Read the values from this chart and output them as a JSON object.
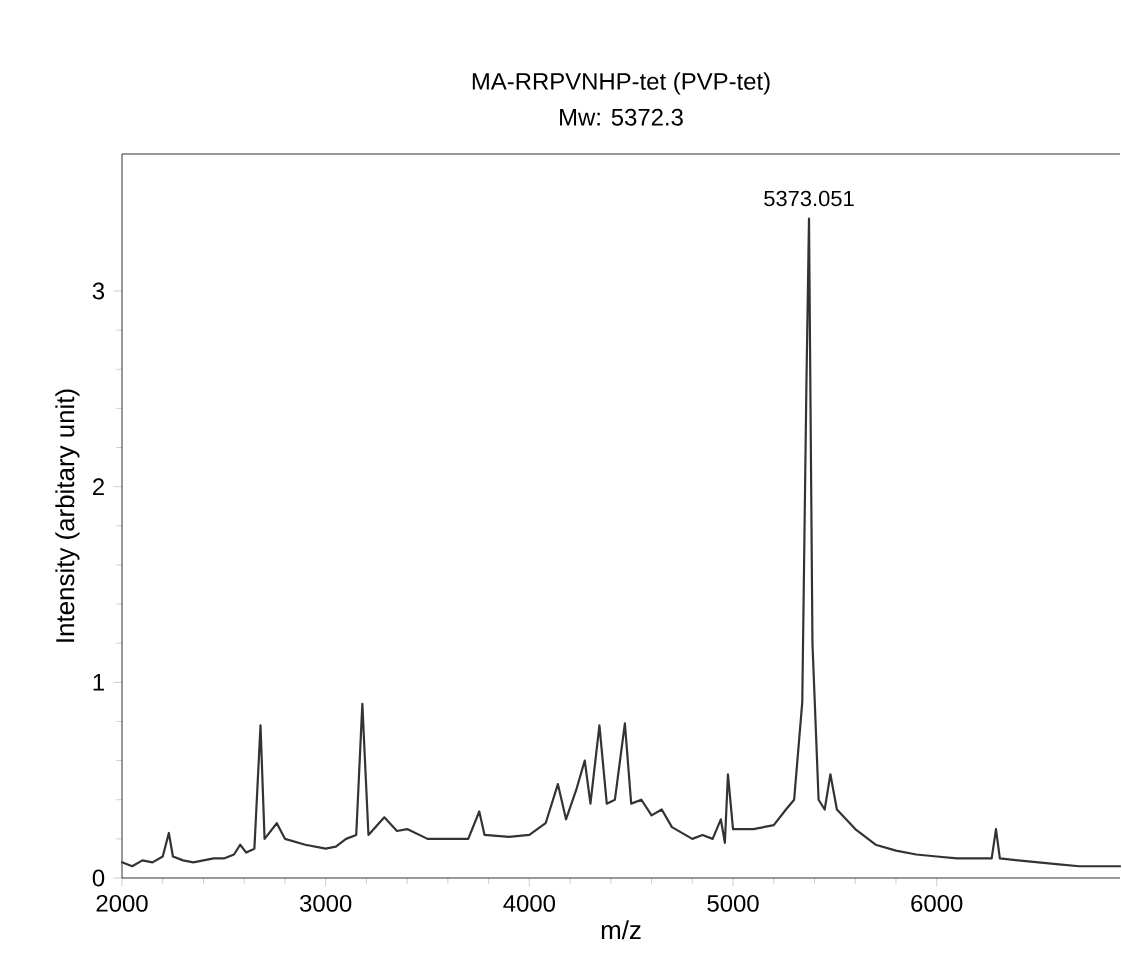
{
  "chart_data": {
    "type": "line",
    "title": "MA-RRPVNHP-tet (PVP-tet)",
    "subtitle": "Mw: 5372.3",
    "xlabel": "m/z",
    "ylabel": "Intensity (arbitary unit)",
    "xlim": [
      2000,
      6900
    ],
    "ylim": [
      0,
      3.7
    ],
    "xticks": [
      2000,
      3000,
      4000,
      5000,
      6000
    ],
    "yticks": [
      0,
      1,
      2,
      3
    ],
    "grid": false,
    "marker": "none",
    "line_style": "solid",
    "annotations": [
      {
        "text": "5373.051",
        "x": 5373,
        "y": 3.37
      }
    ],
    "series": [
      {
        "color": "#333333",
        "x": [
          2000,
          2050,
          2100,
          2150,
          2200,
          2230,
          2250,
          2300,
          2350,
          2400,
          2450,
          2500,
          2550,
          2580,
          2610,
          2650,
          2680,
          2700,
          2760,
          2800,
          2900,
          3000,
          3050,
          3100,
          3150,
          3180,
          3210,
          3288,
          3350,
          3400,
          3500,
          3600,
          3700,
          3754,
          3780,
          3900,
          4000,
          4080,
          4140,
          4180,
          4230,
          4272,
          4300,
          4344,
          4380,
          4420,
          4469,
          4500,
          4550,
          4600,
          4650,
          4700,
          4800,
          4850,
          4900,
          4940,
          4960,
          4975,
          5000,
          5100,
          5200,
          5260,
          5300,
          5340,
          5360,
          5373,
          5390,
          5420,
          5450,
          5478,
          5510,
          5600,
          5700,
          5800,
          5900,
          6000,
          6100,
          6200,
          6270,
          6291,
          6310,
          6400,
          6500,
          6600,
          6700,
          6800,
          6900
        ],
        "values": [
          0.08,
          0.06,
          0.09,
          0.08,
          0.11,
          0.23,
          0.11,
          0.09,
          0.08,
          0.09,
          0.1,
          0.1,
          0.12,
          0.17,
          0.13,
          0.15,
          0.78,
          0.2,
          0.28,
          0.2,
          0.17,
          0.15,
          0.16,
          0.2,
          0.22,
          0.89,
          0.22,
          0.31,
          0.24,
          0.25,
          0.2,
          0.2,
          0.2,
          0.34,
          0.22,
          0.21,
          0.22,
          0.28,
          0.48,
          0.3,
          0.45,
          0.6,
          0.38,
          0.78,
          0.38,
          0.4,
          0.79,
          0.38,
          0.4,
          0.32,
          0.35,
          0.26,
          0.2,
          0.22,
          0.2,
          0.3,
          0.18,
          0.53,
          0.25,
          0.25,
          0.27,
          0.35,
          0.4,
          0.9,
          2.5,
          3.37,
          1.2,
          0.4,
          0.35,
          0.53,
          0.35,
          0.25,
          0.17,
          0.14,
          0.12,
          0.11,
          0.1,
          0.1,
          0.1,
          0.25,
          0.1,
          0.09,
          0.08,
          0.07,
          0.06,
          0.06,
          0.06
        ]
      }
    ]
  }
}
